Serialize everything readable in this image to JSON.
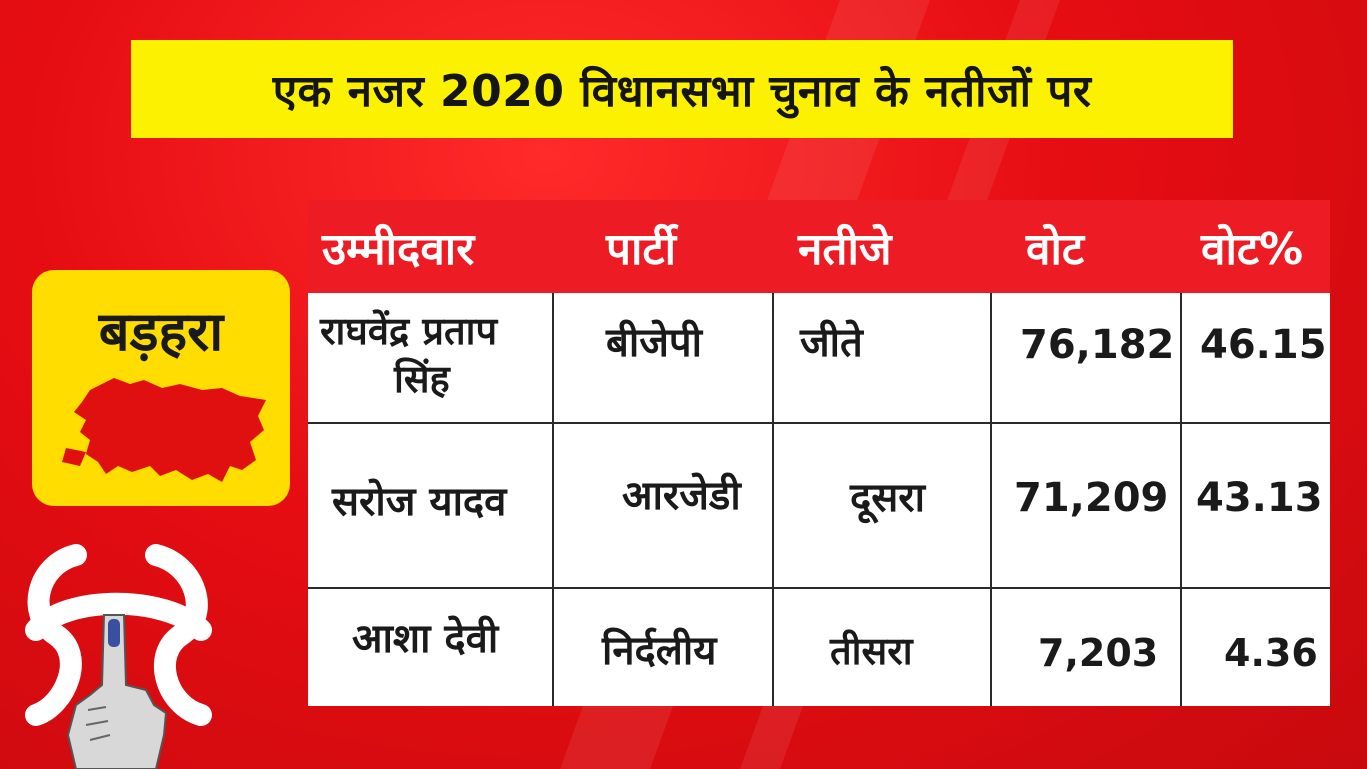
{
  "banner": {
    "title": "एक नजर 2020 विधानसभा चुनाव के नतीजों पर"
  },
  "constituency": {
    "name": "बड़हरा",
    "map_icon": "constituency-map-icon"
  },
  "table": {
    "headers": [
      "उम्मीदवार",
      "पार्टी",
      "नतीजे",
      "वोट",
      "वोट%"
    ],
    "rows": [
      {
        "candidate_line1": "राघवेंद्र प्रताप",
        "candidate_line2": "सिंह",
        "party": "बीजेपी",
        "result": "जीते",
        "votes": "76,182",
        "vote_pct": "46.15"
      },
      {
        "candidate_line1": "सरोज यादव",
        "candidate_line2": "",
        "party": "आरजेडी",
        "result": "दूसरा",
        "votes": "71,209",
        "vote_pct": "43.13"
      },
      {
        "candidate_line1": "आशा देवी",
        "candidate_line2": "",
        "party": "निर्दलीय",
        "result": "तीसरा",
        "votes": "7,203",
        "vote_pct": "4.36"
      }
    ]
  },
  "colors": {
    "background": "#e60d12",
    "banner": "#fcf200",
    "header": "#ed1c24",
    "card": "#ffdd00",
    "map": "#e01010"
  },
  "icons": [
    "constituency-map-icon",
    "voting-finger-icon"
  ]
}
